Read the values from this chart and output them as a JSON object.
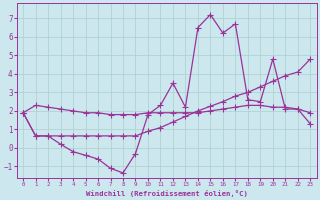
{
  "xlabel": "Windchill (Refroidissement éolien,°C)",
  "bg_color": "#cce8ee",
  "grid_color": "#aacfcc",
  "line_color": "#993399",
  "xlim": [
    -0.5,
    23.5
  ],
  "ylim": [
    -1.6,
    7.8
  ],
  "yticks": [
    -1,
    0,
    1,
    2,
    3,
    4,
    5,
    6,
    7
  ],
  "xticks": [
    0,
    1,
    2,
    3,
    4,
    5,
    6,
    7,
    8,
    9,
    10,
    11,
    12,
    13,
    14,
    15,
    16,
    17,
    18,
    19,
    20,
    21,
    22,
    23
  ],
  "line1_x": [
    0,
    1,
    2,
    3,
    4,
    5,
    6,
    7,
    8,
    9,
    10,
    11,
    12,
    13,
    14,
    15,
    16,
    17,
    18,
    19,
    20,
    21,
    22,
    23
  ],
  "line1_y": [
    1.9,
    2.3,
    2.2,
    2.1,
    2.0,
    1.9,
    1.9,
    1.8,
    1.8,
    1.8,
    1.9,
    1.9,
    1.9,
    1.9,
    1.9,
    2.0,
    2.1,
    2.2,
    2.3,
    2.3,
    2.2,
    2.2,
    2.1,
    1.9
  ],
  "line2_x": [
    0,
    1,
    2,
    3,
    4,
    5,
    6,
    7,
    8,
    9,
    10,
    11,
    12,
    13,
    14,
    15,
    16,
    17,
    18,
    19,
    20,
    21,
    22,
    23
  ],
  "line2_y": [
    1.9,
    0.65,
    0.65,
    0.65,
    0.65,
    0.65,
    0.65,
    0.65,
    0.65,
    0.65,
    0.9,
    1.1,
    1.4,
    1.7,
    2.0,
    2.25,
    2.5,
    2.8,
    3.0,
    3.3,
    3.6,
    3.9,
    4.1,
    4.8
  ],
  "line3_x": [
    0,
    1,
    2,
    3,
    4,
    5,
    6,
    7,
    8,
    9,
    10,
    11,
    12,
    13,
    14,
    15,
    16,
    17,
    18,
    19,
    20,
    21,
    22,
    23
  ],
  "line3_y": [
    1.9,
    0.65,
    0.65,
    0.2,
    -0.2,
    -0.4,
    -0.6,
    -1.1,
    -1.35,
    -0.3,
    1.8,
    2.3,
    3.5,
    2.2,
    6.5,
    7.2,
    6.2,
    6.7,
    2.6,
    2.5,
    4.8,
    2.1,
    2.1,
    1.3
  ]
}
